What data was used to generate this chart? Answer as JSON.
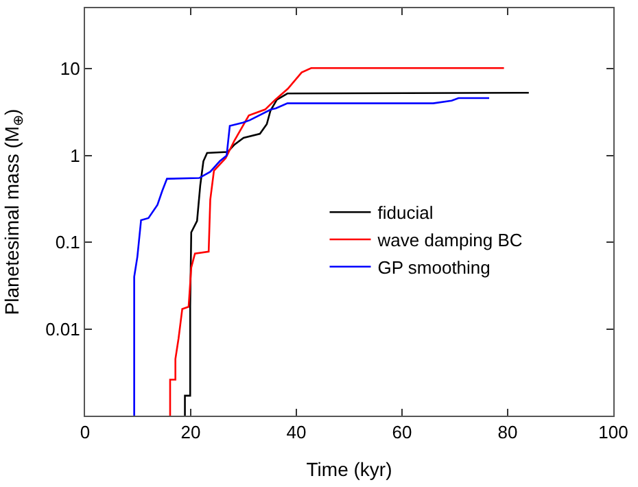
{
  "chart_data": {
    "type": "line",
    "xlabel": "Time (kyr)",
    "ylabel": "Planetesimal mass (M$_{⊕}$)",
    "log": "y",
    "xlim": [
      0,
      100
    ],
    "xticks": [
      0,
      20,
      40,
      60,
      80,
      100
    ],
    "ylim": [
      0.001,
      50
    ],
    "yticks": [
      0.01,
      0.1,
      1,
      10
    ],
    "legend": "right",
    "line_style": "solid",
    "marker": "none",
    "series": [
      {
        "name": "fiducial",
        "color": "#000000",
        "x": [
          18.9,
          18.9,
          19.9,
          19.9,
          20.1,
          21.2,
          21.8,
          22.4,
          23.1,
          27.0,
          28.3,
          30.0,
          33.1,
          34.4,
          35.1,
          36.3,
          38.3,
          84.0
        ],
        "values": [
          0.001,
          0.0017,
          0.0017,
          0.018,
          0.13,
          0.176,
          0.45,
          0.86,
          1.07,
          1.1,
          1.34,
          1.6,
          1.78,
          2.3,
          3.3,
          4.4,
          5.2,
          5.3
        ]
      },
      {
        "name": "wave damping BC",
        "color": "#ff0000",
        "x": [
          16.1,
          16.1,
          17.1,
          17.1,
          17.7,
          18.4,
          19.6,
          20.1,
          20.8,
          23.4,
          23.7,
          24.4,
          26.6,
          28.3,
          31.0,
          34.1,
          36.0,
          38.4,
          41.0,
          42.8,
          79.3
        ],
        "values": [
          0.001,
          0.0026,
          0.0026,
          0.0045,
          0.0078,
          0.017,
          0.018,
          0.051,
          0.074,
          0.078,
          0.31,
          0.67,
          0.93,
          1.5,
          2.9,
          3.4,
          4.4,
          5.9,
          9.1,
          10.2,
          10.2
        ]
      },
      {
        "name": "GP smoothing",
        "color": "#0000ff",
        "x": [
          9.3,
          9.3,
          9.9,
          10.6,
          12.0,
          13.7,
          14.6,
          15.5,
          21.6,
          23.7,
          25.5,
          26.8,
          27.4,
          29.9,
          31.2,
          35.2,
          36.1,
          38.3,
          65.9,
          69.4,
          70.7,
          76.5
        ],
        "values": [
          0.001,
          0.04,
          0.068,
          0.18,
          0.19,
          0.27,
          0.39,
          0.54,
          0.55,
          0.65,
          0.86,
          1.0,
          2.2,
          2.4,
          2.56,
          3.4,
          3.5,
          4.0,
          4.0,
          4.3,
          4.6,
          4.6
        ]
      }
    ]
  }
}
